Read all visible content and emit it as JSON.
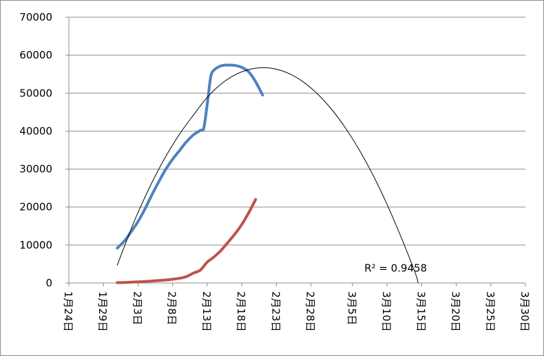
{
  "chart_data": {
    "type": "line",
    "title": "",
    "xlabel": "",
    "ylabel": "",
    "x_axis": {
      "type": "date",
      "range": [
        "2020-01-24",
        "2020-03-30"
      ],
      "ticks": [
        "2020-01-24",
        "2020-01-29",
        "2020-02-03",
        "2020-02-08",
        "2020-02-13",
        "2020-02-18",
        "2020-02-23",
        "2020-02-28",
        "2020-03-05",
        "2020-03-10",
        "2020-03-15",
        "2020-03-20",
        "2020-03-25",
        "2020-03-30"
      ],
      "tick_labels": [
        "1月24日",
        "1月29日",
        "2月3日",
        "2月8日",
        "2月13日",
        "2月18日",
        "2月23日",
        "2月28日",
        "3月5日",
        "3月10日",
        "3月15日",
        "3月20日",
        "3月25日",
        "3月30日"
      ]
    },
    "y_axis": {
      "range": [
        0,
        70000
      ],
      "ticks": [
        0,
        10000,
        20000,
        30000,
        40000,
        50000,
        60000,
        70000
      ],
      "tick_labels": [
        "0",
        "10000",
        "20000",
        "30000",
        "40000",
        "50000",
        "60000",
        "70000"
      ]
    },
    "grid": {
      "horizontal": true,
      "vertical": false
    },
    "legend": "none",
    "series": [
      {
        "color": "#4f81bd",
        "points": [
          [
            "2020-01-31",
            9200
          ],
          [
            "2020-02-01",
            11000
          ],
          [
            "2020-02-02",
            13500
          ],
          [
            "2020-02-03",
            16200
          ],
          [
            "2020-02-04",
            19500
          ],
          [
            "2020-02-05",
            23200
          ],
          [
            "2020-02-06",
            26700
          ],
          [
            "2020-02-07",
            29900
          ],
          [
            "2020-02-08",
            32600
          ],
          [
            "2020-02-09",
            34900
          ],
          [
            "2020-02-10",
            37200
          ],
          [
            "2020-02-11",
            39000
          ],
          [
            "2020-02-12",
            40200
          ],
          [
            "2020-02-12T12:00",
            40800
          ],
          [
            "2020-02-13",
            47000
          ],
          [
            "2020-02-13T12:00",
            54200
          ],
          [
            "2020-02-14",
            56100
          ],
          [
            "2020-02-15",
            57200
          ],
          [
            "2020-02-16",
            57400
          ],
          [
            "2020-02-17",
            57300
          ],
          [
            "2020-02-18",
            56800
          ],
          [
            "2020-02-19",
            55600
          ],
          [
            "2020-02-20",
            53000
          ],
          [
            "2020-02-21",
            49500
          ]
        ]
      },
      {
        "color": "#c0504d",
        "points": [
          [
            "2020-01-31",
            100
          ],
          [
            "2020-02-01",
            150
          ],
          [
            "2020-02-02",
            220
          ],
          [
            "2020-02-03",
            300
          ],
          [
            "2020-02-04",
            400
          ],
          [
            "2020-02-05",
            520
          ],
          [
            "2020-02-06",
            650
          ],
          [
            "2020-02-07",
            800
          ],
          [
            "2020-02-08",
            1000
          ],
          [
            "2020-02-09",
            1250
          ],
          [
            "2020-02-10",
            1700
          ],
          [
            "2020-02-11",
            2600
          ],
          [
            "2020-02-12",
            3400
          ],
          [
            "2020-02-13",
            5500
          ],
          [
            "2020-02-14",
            6900
          ],
          [
            "2020-02-15",
            8600
          ],
          [
            "2020-02-16",
            10700
          ],
          [
            "2020-02-17",
            12900
          ],
          [
            "2020-02-18",
            15400
          ],
          [
            "2020-02-19",
            18500
          ],
          [
            "2020-02-20",
            22000
          ]
        ]
      },
      {
        "color": "#000000",
        "trendline": "polynomial",
        "points": [
          [
            "2020-01-31",
            4700
          ],
          [
            "2020-02-01",
            9500
          ],
          [
            "2020-02-02",
            14200
          ],
          [
            "2020-02-03",
            18600
          ],
          [
            "2020-02-05",
            26400
          ],
          [
            "2020-02-07",
            33300
          ],
          [
            "2020-02-09",
            39200
          ],
          [
            "2020-02-11",
            44200
          ],
          [
            "2020-02-13",
            48900
          ],
          [
            "2020-02-15",
            52400
          ],
          [
            "2020-02-17",
            54800
          ],
          [
            "2020-02-19",
            56200
          ],
          [
            "2020-02-21",
            56700
          ],
          [
            "2020-02-23",
            56300
          ],
          [
            "2020-02-25",
            55000
          ],
          [
            "2020-02-27",
            52800
          ],
          [
            "2020-02-29",
            49700
          ],
          [
            "2020-03-02",
            45700
          ],
          [
            "2020-03-04",
            40800
          ],
          [
            "2020-03-06",
            35000
          ],
          [
            "2020-03-08",
            28300
          ],
          [
            "2020-03-10",
            20700
          ],
          [
            "2020-03-12",
            12200
          ],
          [
            "2020-03-14",
            3000
          ],
          [
            "2020-03-14T12:00",
            0
          ]
        ]
      }
    ],
    "annotations": [
      {
        "text": "R² = 0.9458",
        "x": "2020-03-10",
        "y": 1500
      }
    ]
  }
}
